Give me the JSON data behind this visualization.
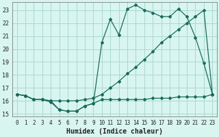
{
  "xlabel": "Humidex (Indice chaleur)",
  "xlim": [
    -0.5,
    23.5
  ],
  "ylim": [
    14.8,
    23.6
  ],
  "xticks": [
    0,
    1,
    2,
    3,
    4,
    5,
    6,
    7,
    8,
    9,
    10,
    11,
    12,
    13,
    14,
    15,
    16,
    17,
    18,
    19,
    20,
    21,
    22,
    23
  ],
  "yticks": [
    15,
    16,
    17,
    18,
    19,
    20,
    21,
    22,
    23
  ],
  "bg_color": "#d8f5f0",
  "grid_color": "#aad8d0",
  "line_color": "#1a6b5a",
  "line1_x": [
    0,
    1,
    2,
    3,
    4,
    5,
    6,
    7,
    8,
    9,
    10,
    11,
    12,
    13,
    14,
    15,
    16,
    17,
    18,
    19,
    20,
    21,
    22,
    23
  ],
  "line1_y": [
    16.5,
    16.4,
    16.1,
    16.1,
    15.9,
    15.3,
    15.2,
    15.2,
    15.6,
    15.8,
    16.1,
    16.1,
    16.1,
    16.1,
    16.1,
    16.1,
    16.2,
    16.2,
    16.2,
    16.3,
    16.3,
    16.3,
    16.3,
    16.5
  ],
  "line2_x": [
    0,
    1,
    2,
    3,
    4,
    5,
    6,
    7,
    8,
    9,
    10,
    11,
    12,
    13,
    14,
    15,
    16,
    17,
    18,
    19,
    20,
    21,
    22,
    23
  ],
  "line2_y": [
    16.5,
    16.4,
    16.1,
    16.1,
    16.0,
    16.0,
    16.0,
    16.0,
    16.1,
    16.2,
    16.5,
    17.0,
    17.5,
    18.1,
    18.6,
    19.2,
    19.8,
    20.5,
    21.0,
    21.5,
    22.0,
    22.5,
    23.0,
    16.5
  ],
  "line3_x": [
    0,
    1,
    2,
    3,
    4,
    5,
    6,
    7,
    8,
    9,
    10,
    11,
    12,
    13,
    14,
    15,
    16,
    17,
    18,
    19,
    20,
    21,
    22,
    23
  ],
  "line3_y": [
    16.5,
    16.4,
    16.1,
    16.1,
    16.0,
    15.3,
    15.2,
    15.2,
    15.6,
    15.8,
    20.5,
    22.3,
    21.1,
    23.1,
    23.4,
    23.0,
    22.8,
    22.5,
    22.5,
    23.1,
    22.5,
    20.9,
    18.9,
    16.5
  ]
}
